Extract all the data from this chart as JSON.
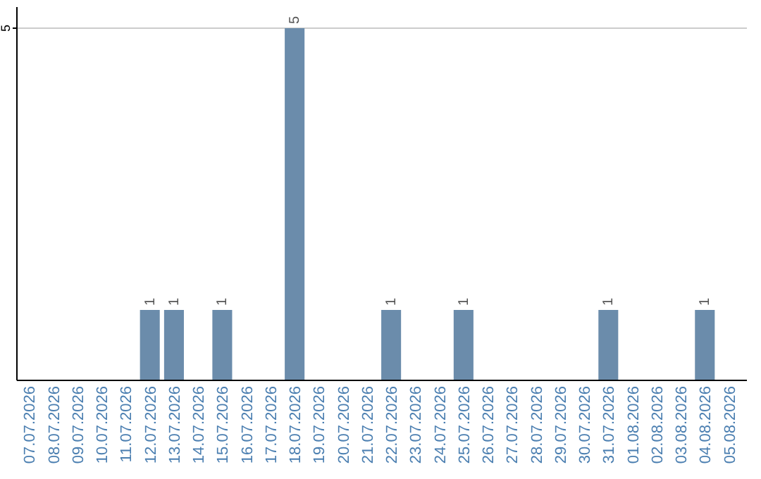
{
  "chart_data": {
    "type": "bar",
    "categories": [
      "07.07.2026",
      "08.07.2026",
      "09.07.2026",
      "10.07.2026",
      "11.07.2026",
      "12.07.2026",
      "13.07.2026",
      "14.07.2026",
      "15.07.2026",
      "16.07.2026",
      "17.07.2026",
      "18.07.2026",
      "19.07.2026",
      "20.07.2026",
      "21.07.2026",
      "22.07.2026",
      "23.07.2026",
      "24.07.2026",
      "25.07.2026",
      "26.07.2026",
      "27.07.2026",
      "28.07.2026",
      "29.07.2026",
      "30.07.2026",
      "31.07.2026",
      "01.08.2026",
      "02.08.2026",
      "03.08.2026",
      "04.08.2026",
      "05.08.2026"
    ],
    "values": [
      0,
      0,
      0,
      0,
      0,
      1,
      1,
      0,
      1,
      0,
      0,
      5,
      0,
      0,
      0,
      1,
      0,
      0,
      1,
      0,
      0,
      0,
      0,
      0,
      1,
      0,
      0,
      0,
      1,
      0
    ],
    "value_labels": [
      null,
      null,
      null,
      null,
      null,
      "1",
      "1",
      null,
      "1",
      null,
      null,
      "5",
      null,
      null,
      null,
      "1",
      null,
      null,
      "1",
      null,
      null,
      null,
      null,
      null,
      "1",
      null,
      null,
      null,
      "1",
      null
    ],
    "color": "#6b8cab",
    "ylim": [
      0,
      5.3
    ],
    "yticks": [
      5
    ],
    "grid": "y"
  }
}
